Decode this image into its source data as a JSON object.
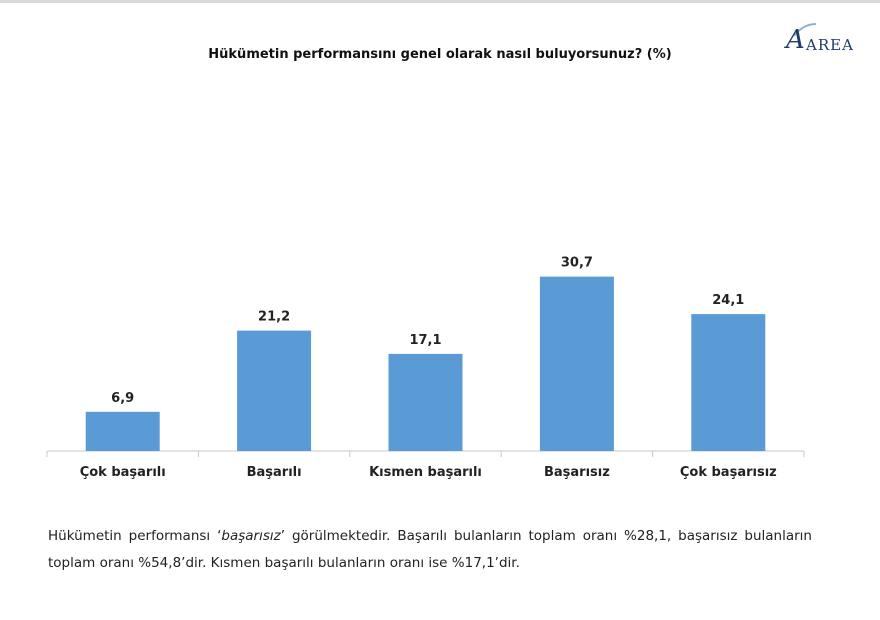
{
  "logo": {
    "text": "AREA"
  },
  "chart_data": {
    "type": "bar",
    "title": "Hükümetin performansını genel olarak nasıl buluyorsunuz? (%)",
    "categories": [
      "Çok başarılı",
      "Başarılı",
      "Kısmen başarılı",
      "Başarısız",
      "Çok başarısız"
    ],
    "values": [
      6.9,
      21.2,
      17.1,
      30.7,
      24.1
    ],
    "value_labels": [
      "6,9",
      "21,2",
      "17,1",
      "30,7",
      "24,1"
    ],
    "xlabel": "",
    "ylabel": "",
    "ylim": [
      0,
      35
    ],
    "grid": false,
    "legend": "none",
    "colors": {
      "bar": "#5b9bd5",
      "axis": "#c8c8c8"
    }
  },
  "summary": {
    "part1": "Hükümetin performansı ‘",
    "emphasis": "başarısız",
    "part2": "’ görülmektedir. Başarılı bulanların toplam oranı %28,1, başarısız bulanların toplam oranı %54,8’dir. Kısmen başarılı bulanların oranı ise %17,1’dir."
  }
}
